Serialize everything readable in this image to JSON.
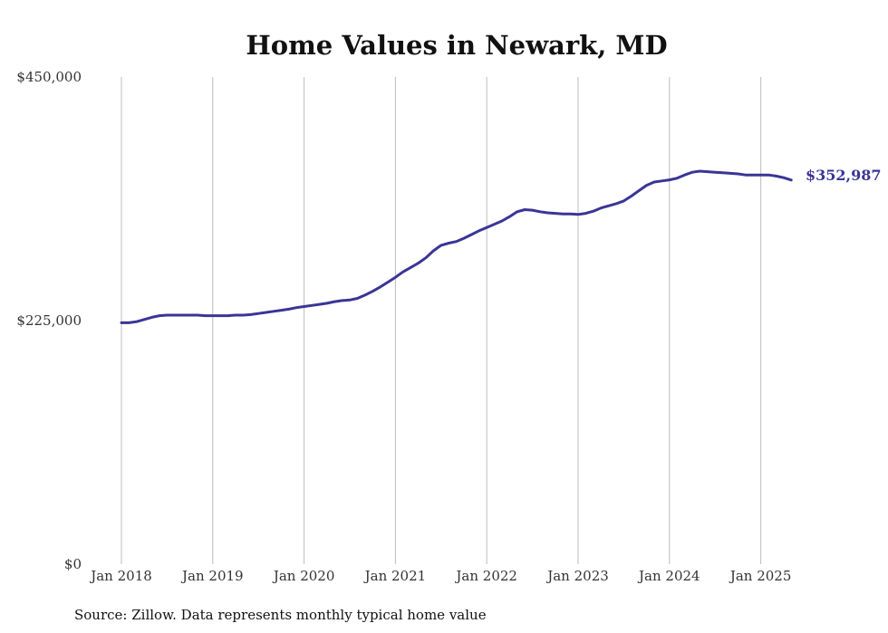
{
  "chart_data": {
    "type": "line",
    "title": "Home Values in Newark, MD",
    "xlabel": "",
    "ylabel": "",
    "x_ticks": [
      "Jan 2018",
      "Jan 2019",
      "Jan 2020",
      "Jan 2021",
      "Jan 2022",
      "Jan 2023",
      "Jan 2024",
      "Jan 2025"
    ],
    "y_ticks": [
      {
        "value": 0,
        "label": "$0"
      },
      {
        "value": 225000,
        "label": "$225,000"
      },
      {
        "value": 450000,
        "label": "$450,000"
      }
    ],
    "ylim": [
      0,
      450000
    ],
    "xlim": [
      "2018-01",
      "2025-05"
    ],
    "grid": "vertical",
    "series": [
      {
        "color": "#3a3596",
        "points": [
          [
            "2018-01",
            223000
          ],
          [
            "2018-02",
            223000
          ],
          [
            "2018-03",
            224000
          ],
          [
            "2018-04",
            226000
          ],
          [
            "2018-05",
            228000
          ],
          [
            "2018-06",
            229500
          ],
          [
            "2018-07",
            230000
          ],
          [
            "2018-08",
            230000
          ],
          [
            "2018-09",
            230000
          ],
          [
            "2018-10",
            230000
          ],
          [
            "2018-11",
            230000
          ],
          [
            "2018-12",
            229500
          ],
          [
            "2019-01",
            229500
          ],
          [
            "2019-02",
            229500
          ],
          [
            "2019-03",
            229500
          ],
          [
            "2019-04",
            230000
          ],
          [
            "2019-05",
            230000
          ],
          [
            "2019-06",
            230500
          ],
          [
            "2019-07",
            231500
          ],
          [
            "2019-08",
            232500
          ],
          [
            "2019-09",
            233500
          ],
          [
            "2019-10",
            234500
          ],
          [
            "2019-11",
            235500
          ],
          [
            "2019-12",
            237000
          ],
          [
            "2020-01",
            238000
          ],
          [
            "2020-02",
            239000
          ],
          [
            "2020-03",
            240000
          ],
          [
            "2020-04",
            241000
          ],
          [
            "2020-05",
            242500
          ],
          [
            "2020-06",
            243500
          ],
          [
            "2020-07",
            244000
          ],
          [
            "2020-08",
            245500
          ],
          [
            "2020-09",
            248500
          ],
          [
            "2020-10",
            252000
          ],
          [
            "2020-11",
            256000
          ],
          [
            "2020-12",
            260500
          ],
          [
            "2021-01",
            265000
          ],
          [
            "2021-02",
            270000
          ],
          [
            "2021-03",
            274000
          ],
          [
            "2021-04",
            278000
          ],
          [
            "2021-05",
            283000
          ],
          [
            "2021-06",
            289500
          ],
          [
            "2021-07",
            294500
          ],
          [
            "2021-08",
            296500
          ],
          [
            "2021-09",
            298000
          ],
          [
            "2021-10",
            301000
          ],
          [
            "2021-11",
            304500
          ],
          [
            "2021-12",
            308000
          ],
          [
            "2022-01",
            311000
          ],
          [
            "2022-02",
            314000
          ],
          [
            "2022-03",
            317000
          ],
          [
            "2022-04",
            321000
          ],
          [
            "2022-05",
            325500
          ],
          [
            "2022-06",
            327500
          ],
          [
            "2022-07",
            327000
          ],
          [
            "2022-08",
            325500
          ],
          [
            "2022-09",
            324500
          ],
          [
            "2022-10",
            324000
          ],
          [
            "2022-11",
            323500
          ],
          [
            "2022-12",
            323500
          ],
          [
            "2023-01",
            323000
          ],
          [
            "2023-02",
            324000
          ],
          [
            "2023-03",
            326000
          ],
          [
            "2023-04",
            329000
          ],
          [
            "2023-05",
            331000
          ],
          [
            "2023-06",
            333000
          ],
          [
            "2023-07",
            335500
          ],
          [
            "2023-08",
            340000
          ],
          [
            "2023-09",
            345000
          ],
          [
            "2023-10",
            350000
          ],
          [
            "2023-11",
            353000
          ],
          [
            "2023-12",
            354000
          ],
          [
            "2024-01",
            355000
          ],
          [
            "2024-02",
            356500
          ],
          [
            "2024-03",
            359500
          ],
          [
            "2024-04",
            362000
          ],
          [
            "2024-05",
            363000
          ],
          [
            "2024-06",
            362500
          ],
          [
            "2024-07",
            362000
          ],
          [
            "2024-08",
            361500
          ],
          [
            "2024-09",
            361000
          ],
          [
            "2024-10",
            360500
          ],
          [
            "2024-11",
            359500
          ],
          [
            "2024-12",
            359500
          ],
          [
            "2025-01",
            359500
          ],
          [
            "2025-02",
            359500
          ],
          [
            "2025-03",
            358500
          ],
          [
            "2025-04",
            357000
          ],
          [
            "2025-05",
            354800
          ]
        ]
      }
    ],
    "end_label": "$352,987",
    "source": "Source: Zillow. Data represents monthly typical home value"
  }
}
